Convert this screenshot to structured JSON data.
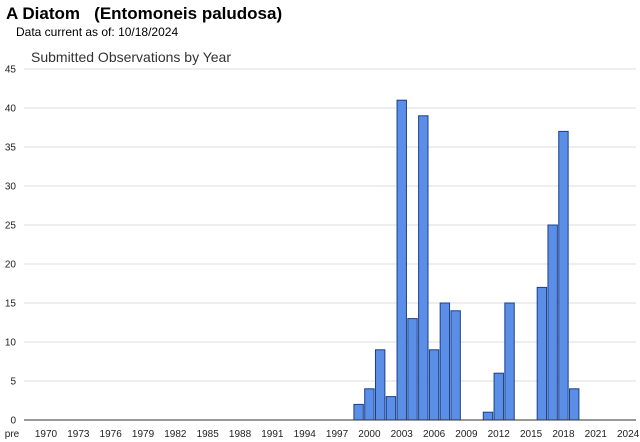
{
  "header": {
    "title": "A Diatom   (Entomoneis paludosa)",
    "data_current_label": "Data current as of:",
    "data_current_date": "10/18/2024"
  },
  "colors": {
    "bar_fill": "#5b8ee6",
    "bar_stroke": "#1a3f8a",
    "grid": "#dddddd",
    "axis": "#333333"
  },
  "chart_data": {
    "type": "bar",
    "title": "Submitted Observations by Year",
    "xlabel": "",
    "ylabel": "",
    "ylim": [
      0,
      45
    ],
    "yticks": [
      0,
      5,
      10,
      15,
      20,
      25,
      30,
      35,
      40,
      45
    ],
    "grid": true,
    "x_tick_labels": [
      "pre",
      "1970",
      "1973",
      "1976",
      "1979",
      "1982",
      "1985",
      "1988",
      "1991",
      "1994",
      "1997",
      "2000",
      "2003",
      "2006",
      "2009",
      "2012",
      "2015",
      "2018",
      "2021",
      "2024"
    ],
    "categories": [
      "1999",
      "2000",
      "2001",
      "2002",
      "2003",
      "2004",
      "2005",
      "2006",
      "2007",
      "2008",
      "2011",
      "2012",
      "2013",
      "2016",
      "2017",
      "2018",
      "2019"
    ],
    "values": [
      2,
      4,
      9,
      3,
      41,
      13,
      39,
      9,
      15,
      14,
      1,
      6,
      15,
      17,
      25,
      37,
      4
    ]
  }
}
